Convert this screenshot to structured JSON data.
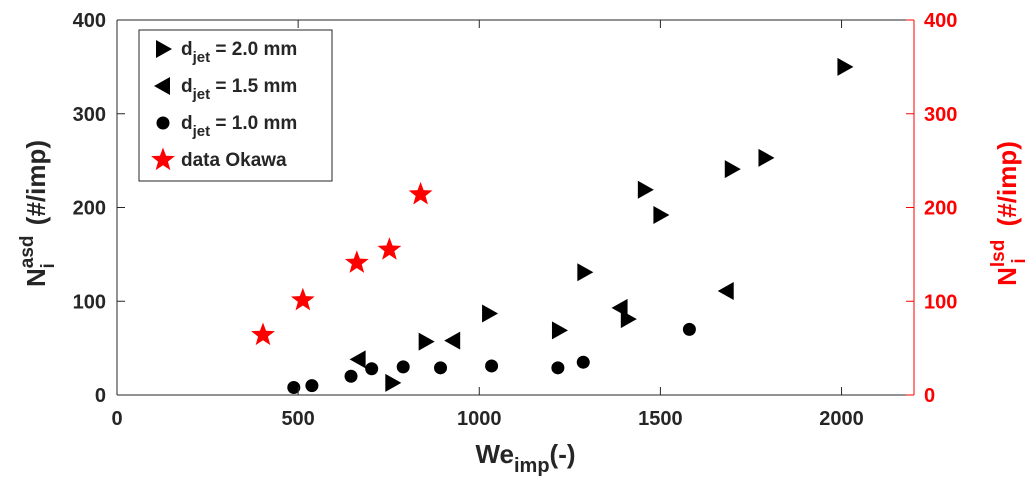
{
  "chart_data": {
    "type": "scatter",
    "xlabel": {
      "main": "We",
      "sub": "imp",
      "suffix": "(-)"
    },
    "ylabel_left": {
      "main": "N",
      "sup": "asd",
      "sub": "i",
      "suffix": "(#/imp)"
    },
    "ylabel_right": {
      "main": "N",
      "sup": "lsd",
      "sub": "i",
      "suffix": "(#/imp)"
    },
    "xlim": [
      0,
      2200
    ],
    "ylim": [
      0,
      400
    ],
    "ylim_right": [
      0,
      400
    ],
    "xticks": [
      0,
      500,
      1000,
      1500,
      2000
    ],
    "yticks": [
      0,
      100,
      200,
      300,
      400
    ],
    "grid": false,
    "legend_position": "top-left",
    "right_axis_color": "#ff0000",
    "series": [
      {
        "name": "2.0 mm",
        "label_main": "d",
        "label_sub": "jet",
        "label_rest": " = 2.0 mm",
        "marker": "triangle-right",
        "color": "#000000",
        "points": [
          [
            760,
            13
          ],
          [
            852,
            57
          ],
          [
            1027,
            87
          ],
          [
            1220,
            69
          ],
          [
            1290,
            131
          ],
          [
            1410,
            81
          ],
          [
            1457,
            219
          ],
          [
            1500,
            192
          ],
          [
            1697,
            241
          ],
          [
            1790,
            253
          ],
          [
            2008,
            350
          ]
        ]
      },
      {
        "name": "1.5 mm",
        "label_main": "d",
        "label_sub": "jet",
        "label_rest": " = 1.5 mm",
        "marker": "triangle-left",
        "color": "#000000",
        "points": [
          [
            667,
            38
          ],
          [
            928,
            58
          ],
          [
            1390,
            93
          ],
          [
            1683,
            111
          ]
        ]
      },
      {
        "name": "1.0 mm",
        "label_main": "d",
        "label_sub": "jet",
        "label_rest": " = 1.0 mm",
        "marker": "circle",
        "color": "#000000",
        "points": [
          [
            488,
            8
          ],
          [
            538,
            10
          ],
          [
            646,
            20
          ],
          [
            703,
            28
          ],
          [
            790,
            30
          ],
          [
            893,
            29
          ],
          [
            1034,
            31
          ],
          [
            1217,
            29
          ],
          [
            1287,
            35
          ],
          [
            1580,
            70
          ]
        ]
      },
      {
        "name": "data Okawa",
        "label_main": "data Okawa",
        "label_sub": "",
        "label_rest": "",
        "marker": "star",
        "color": "#ff0000",
        "points": [
          [
            403,
            64
          ],
          [
            513,
            101
          ],
          [
            662,
            141
          ],
          [
            752,
            155
          ],
          [
            838,
            214
          ]
        ]
      }
    ]
  }
}
